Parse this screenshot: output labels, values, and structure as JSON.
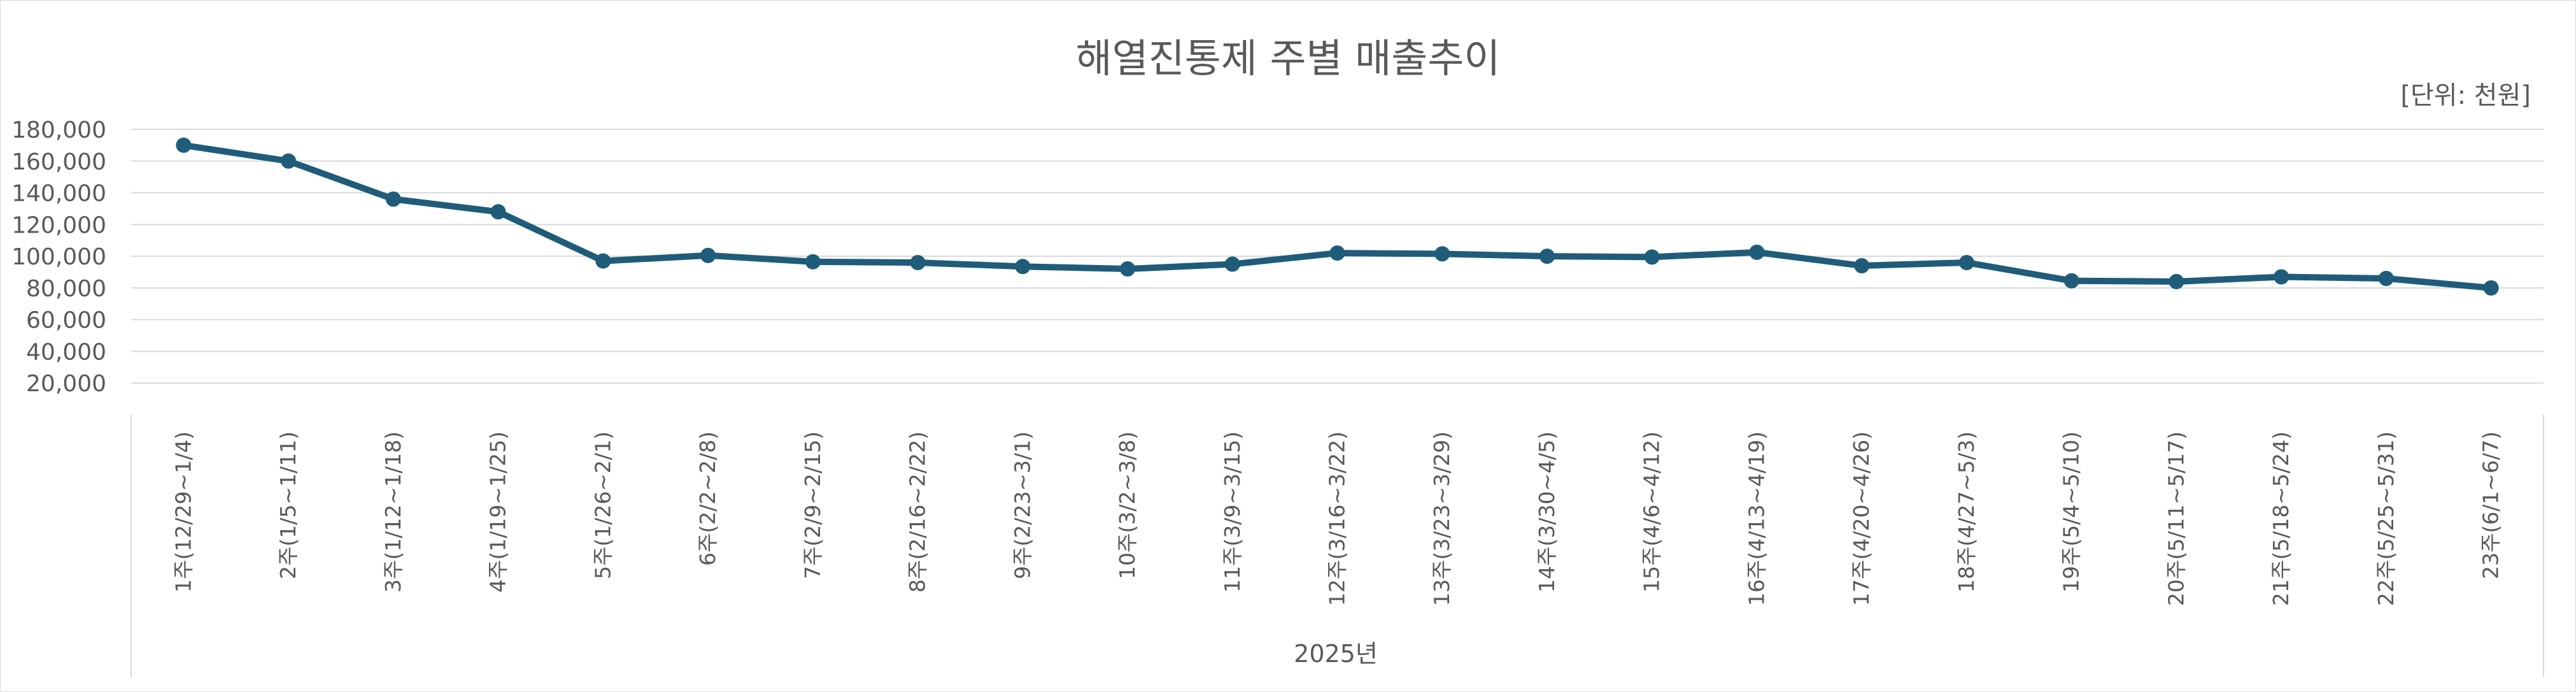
{
  "chart_data": {
    "type": "line",
    "title": "해열진통제 주별 매출추이",
    "unit_label": "[단위: 천원]",
    "group_label": "2025년",
    "categories": [
      "1주(12/29~1/4)",
      "2주(1/5~1/11)",
      "3주(1/12~1/18)",
      "4주(1/19~1/25)",
      "5주(1/26~2/1)",
      "6주(2/2~2/8)",
      "7주(2/9~2/15)",
      "8주(2/16~2/22)",
      "9주(2/23~3/1)",
      "10주(3/2~3/8)",
      "11주(3/9~3/15)",
      "12주(3/16~3/22)",
      "13주(3/23~3/29)",
      "14주(3/30~4/5)",
      "15주(4/6~4/12)",
      "16주(4/13~4/19)",
      "17주(4/20~4/26)",
      "18주(4/27~5/3)",
      "19주(5/4~5/10)",
      "20주(5/11~5/17)",
      "21주(5/18~5/24)",
      "22주(5/25~5/31)",
      "23주(6/1~6/7)"
    ],
    "values": [
      170000,
      160000,
      136000,
      128000,
      97000,
      100500,
      96500,
      96000,
      93500,
      92000,
      95000,
      102000,
      101500,
      100000,
      99500,
      102500,
      94000,
      96000,
      84500,
      84000,
      87000,
      86000,
      80000
    ],
    "yticks": [
      "20,000",
      "40,000",
      "60,000",
      "80,000",
      "100,000",
      "120,000",
      "140,000",
      "160,000",
      "180,000"
    ],
    "ylim": [
      0,
      180000
    ],
    "grid": true,
    "legend": "none",
    "colors": {
      "line": "#1f5c7a",
      "grid": "#d9d9d9",
      "text": "#595959"
    }
  }
}
